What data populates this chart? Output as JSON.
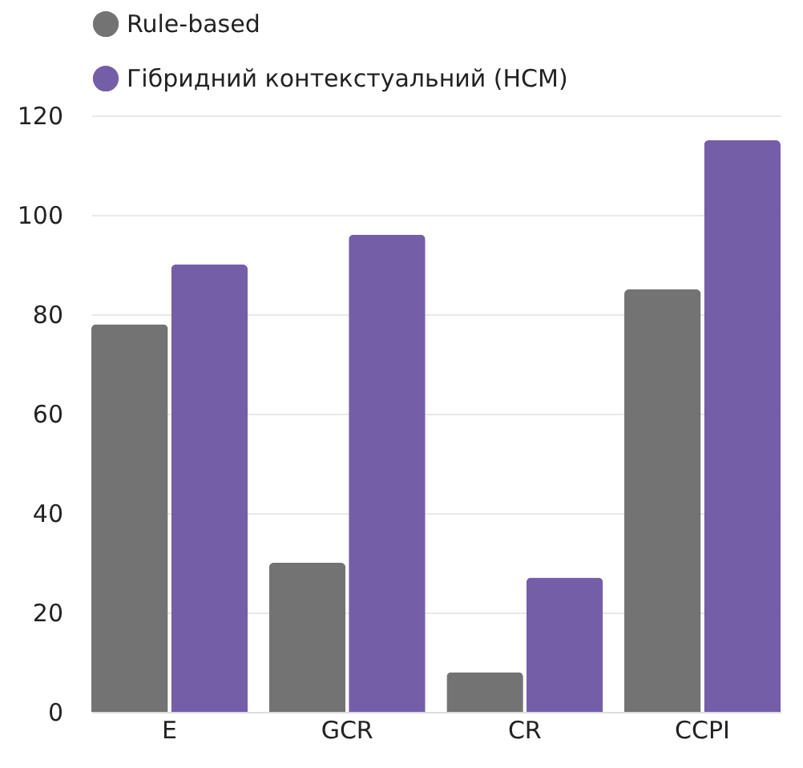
{
  "chart_data": {
    "type": "bar",
    "categories": [
      "E",
      "GCR",
      "CR",
      "CCPI"
    ],
    "series": [
      {
        "name": "Rule-based",
        "color": "#737373",
        "values": [
          78,
          30,
          8,
          85
        ]
      },
      {
        "name": "Гібридний контекстуальний (HCM)",
        "color": "#755ea8",
        "values": [
          90,
          96,
          27,
          115
        ]
      }
    ],
    "ylim": [
      0,
      120
    ],
    "yticks": [
      0,
      20,
      40,
      60,
      80,
      100,
      120
    ],
    "grid": "y",
    "legend": "top"
  }
}
